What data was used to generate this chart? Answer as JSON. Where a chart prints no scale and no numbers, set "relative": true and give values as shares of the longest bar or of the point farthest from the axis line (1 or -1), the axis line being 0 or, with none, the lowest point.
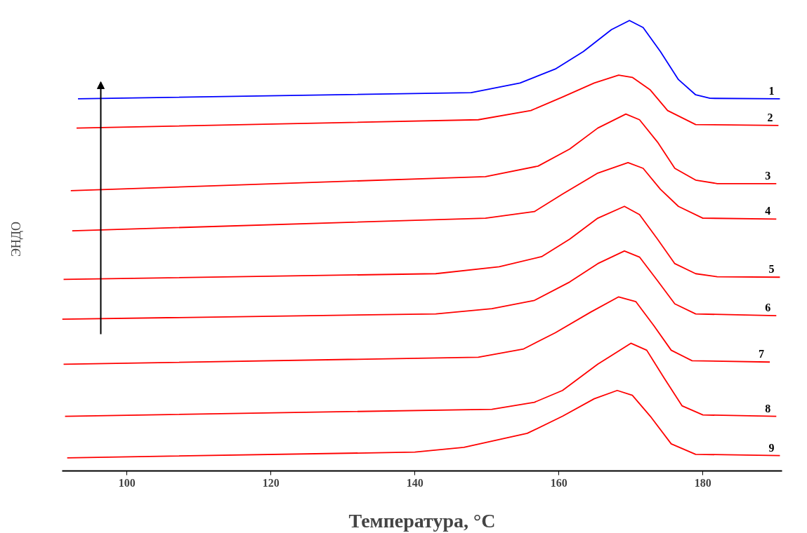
{
  "chart_data": {
    "type": "line",
    "relative": true,
    "xlabel": "Температура, °C",
    "ylabel": "ЭНДО",
    "xlim": [
      91,
      191
    ],
    "xticks": [
      100,
      120,
      140,
      160,
      180
    ],
    "grid": false,
    "legend": false,
    "marker": "none",
    "line_style": "solid",
    "series": [
      {
        "name": "1",
        "color": "#0000ff",
        "x": [
          93.2,
          147.8,
          154.6,
          159.5,
          163.4,
          167.3,
          169.8,
          171.7,
          174.1,
          176.6,
          179,
          181,
          190.7
        ],
        "values": [
          0.821,
          0.835,
          0.857,
          0.889,
          0.929,
          0.979,
          1.0,
          0.984,
          0.929,
          0.865,
          0.83,
          0.822,
          0.821
        ]
      },
      {
        "name": "2",
        "color": "#ff0000",
        "x": [
          93.0,
          148.8,
          156.1,
          160.5,
          164.9,
          168.3,
          170.2,
          172.7,
          175.1,
          179,
          190.5
        ],
        "values": [
          0.754,
          0.773,
          0.794,
          0.825,
          0.857,
          0.875,
          0.87,
          0.841,
          0.794,
          0.762,
          0.76
        ]
      },
      {
        "name": "3",
        "color": "#ff0000",
        "x": [
          92.2,
          149.8,
          157.1,
          161.5,
          165.4,
          169.3,
          171.2,
          173.7,
          176.1,
          179,
          182,
          190.2
        ],
        "values": [
          0.611,
          0.643,
          0.667,
          0.706,
          0.754,
          0.786,
          0.773,
          0.722,
          0.662,
          0.635,
          0.627,
          0.627
        ]
      },
      {
        "name": "4",
        "color": "#ff0000",
        "x": [
          92.4,
          149.8,
          156.6,
          160.5,
          165.4,
          169.6,
          171.7,
          174.1,
          176.6,
          180,
          190.2
        ],
        "values": [
          0.519,
          0.548,
          0.563,
          0.603,
          0.651,
          0.675,
          0.662,
          0.614,
          0.575,
          0.548,
          0.546
        ]
      },
      {
        "name": "5",
        "color": "#ff0000",
        "x": [
          91.2,
          142.9,
          151.7,
          157.6,
          161.5,
          165.4,
          169.1,
          171.2,
          173.7,
          176.1,
          179,
          182,
          190.7
        ],
        "values": [
          0.408,
          0.421,
          0.437,
          0.46,
          0.5,
          0.548,
          0.575,
          0.556,
          0.5,
          0.444,
          0.421,
          0.414,
          0.413
        ]
      },
      {
        "name": "6",
        "color": "#ff0000",
        "x": [
          91.0,
          142.9,
          150.7,
          156.6,
          161.5,
          165.4,
          169.1,
          171.2,
          173.7,
          176.1,
          179,
          190.2
        ],
        "values": [
          0.317,
          0.329,
          0.341,
          0.36,
          0.402,
          0.444,
          0.473,
          0.459,
          0.405,
          0.352,
          0.329,
          0.325
        ]
      },
      {
        "name": "7",
        "color": "#ff0000",
        "x": [
          91.2,
          148.8,
          155.1,
          159.5,
          164.4,
          168.3,
          170.7,
          173.2,
          175.6,
          178.5,
          189.3
        ],
        "values": [
          0.214,
          0.23,
          0.249,
          0.286,
          0.333,
          0.368,
          0.357,
          0.302,
          0.246,
          0.222,
          0.219
        ]
      },
      {
        "name": "8",
        "color": "#ff0000",
        "x": [
          91.4,
          150.7,
          156.6,
          160.5,
          165.4,
          170.0,
          172.2,
          174.6,
          177.1,
          180,
          190.2
        ],
        "values": [
          0.095,
          0.111,
          0.127,
          0.154,
          0.214,
          0.262,
          0.246,
          0.183,
          0.119,
          0.098,
          0.095
        ]
      },
      {
        "name": "9",
        "color": "#ff0000",
        "x": [
          91.7,
          140.0,
          146.8,
          155.6,
          160.5,
          164.9,
          168.1,
          170.2,
          172.7,
          175.6,
          179,
          190.7
        ],
        "values": [
          0.0,
          0.013,
          0.024,
          0.056,
          0.095,
          0.135,
          0.154,
          0.143,
          0.095,
          0.032,
          0.008,
          0.005
        ]
      }
    ]
  }
}
